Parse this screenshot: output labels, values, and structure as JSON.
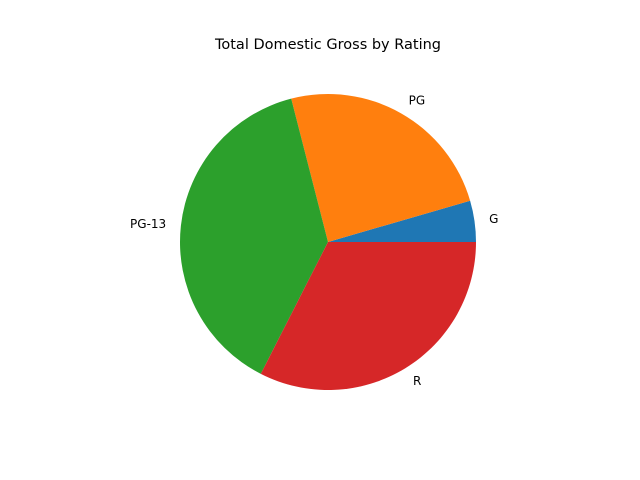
{
  "chart_data": {
    "type": "pie",
    "title": "Total Domestic Gross by Rating",
    "categories": [
      "G",
      "PG",
      "PG-13",
      "R"
    ],
    "values": [
      4.5,
      24.5,
      38.5,
      32.5
    ],
    "colors": [
      "#1f77b4",
      "#ff7f0e",
      "#2ca02c",
      "#d62728"
    ],
    "start_angle_deg": 0,
    "direction": "counterclockwise",
    "legend": "none"
  }
}
